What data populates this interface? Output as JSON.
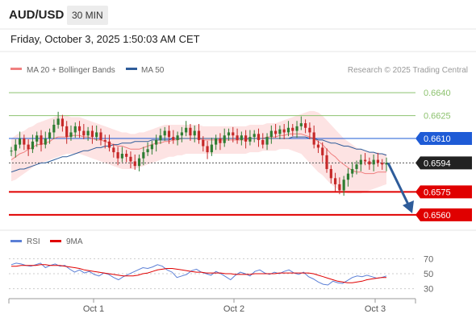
{
  "header": {
    "symbol": "AUD/USD",
    "timeframe": "30 MIN"
  },
  "datetime": "Friday, October 3, 2025 1:50:03 AM CET",
  "legend": {
    "bollinger_label": "MA 20 + Bollinger Bands",
    "ma50_label": "MA 50",
    "rsi_label": "RSI",
    "rsi_ma_label": "9MA"
  },
  "credit": "Research © 2025 Trading Central",
  "colors": {
    "bullish_candle": "#2e7d32",
    "bearish_candle": "#c62828",
    "bollinger_fill": "#fde0e0",
    "ma20": "#f08080",
    "ma50": "#2e5c9a",
    "support": "#e00000",
    "resistance": "#8dc26f",
    "pivot": "#1e5bd6",
    "arrow": "#2e5c9a",
    "rsi": "#5b7fd6",
    "rsi_ma": "#e00000"
  },
  "chart_data": [
    {
      "type": "candlestick",
      "x_labels": [
        "Oct 1",
        "Oct 2",
        "Oct 3"
      ],
      "ylim": [
        0.6552,
        0.6648
      ],
      "levels": [
        {
          "value": 0.664,
          "label": "0.6640",
          "kind": "resistance"
        },
        {
          "value": 0.6625,
          "label": "0.6625",
          "kind": "resistance"
        },
        {
          "value": 0.661,
          "label": "0.6610",
          "kind": "pivot"
        },
        {
          "value": 0.6594,
          "label": "0.6594",
          "kind": "last"
        },
        {
          "value": 0.6575,
          "label": "0.6575",
          "kind": "support"
        },
        {
          "value": 0.656,
          "label": "0.6560",
          "kind": "support"
        }
      ],
      "close": [
        0.6602,
        0.6606,
        0.661,
        0.6606,
        0.6603,
        0.6608,
        0.6612,
        0.6606,
        0.661,
        0.6614,
        0.6619,
        0.6623,
        0.6618,
        0.6611,
        0.6614,
        0.6618,
        0.6615,
        0.6612,
        0.6615,
        0.6611,
        0.6614,
        0.6609,
        0.6608,
        0.6604,
        0.6601,
        0.6597,
        0.66,
        0.6598,
        0.6595,
        0.6592,
        0.6597,
        0.6601,
        0.6603,
        0.6606,
        0.6609,
        0.6612,
        0.6615,
        0.6611,
        0.6609,
        0.6612,
        0.6614,
        0.6617,
        0.6612,
        0.6615,
        0.6609,
        0.6605,
        0.6601,
        0.6606,
        0.661,
        0.6607,
        0.6612,
        0.6614,
        0.6612,
        0.6609,
        0.6612,
        0.6608,
        0.6611,
        0.6613,
        0.6609,
        0.6606,
        0.6611,
        0.6615,
        0.6613,
        0.6616,
        0.6614,
        0.6617,
        0.6615,
        0.6618,
        0.662,
        0.6617,
        0.6614,
        0.6606,
        0.6604,
        0.6599,
        0.659,
        0.6584,
        0.658,
        0.6576,
        0.6583,
        0.6587,
        0.659,
        0.6593,
        0.6596,
        0.6595,
        0.6593,
        0.6596,
        0.6594,
        0.6593,
        0.6594
      ],
      "ma20": [
        0.6596,
        0.6598,
        0.66,
        0.6601,
        0.6603,
        0.6604,
        0.6606,
        0.6606,
        0.6607,
        0.6608,
        0.661,
        0.6611,
        0.6611,
        0.6611,
        0.6612,
        0.6612,
        0.6612,
        0.6611,
        0.6611,
        0.661,
        0.6609,
        0.6609,
        0.6608,
        0.6607,
        0.6606,
        0.6605,
        0.6605,
        0.6604,
        0.6603,
        0.6603,
        0.6603,
        0.6604,
        0.6605,
        0.6606,
        0.6607,
        0.6607,
        0.6608,
        0.6608,
        0.6609,
        0.6609,
        0.661,
        0.661,
        0.661,
        0.661,
        0.661,
        0.6609,
        0.6609,
        0.6609,
        0.6609,
        0.6609,
        0.6609,
        0.6609,
        0.6609,
        0.6609,
        0.6609,
        0.6609,
        0.661,
        0.661,
        0.661,
        0.661,
        0.6611,
        0.6611,
        0.6611,
        0.6612,
        0.6612,
        0.6613,
        0.6613,
        0.6613,
        0.6613,
        0.6612,
        0.6611,
        0.661,
        0.6608,
        0.6606,
        0.6603,
        0.66,
        0.6598,
        0.6595,
        0.6593,
        0.6591,
        0.6589,
        0.6588,
        0.6588,
        0.6587,
        0.6587,
        0.6587,
        0.6588,
        0.6588,
        0.6588
      ],
      "bb_upper": [
        0.661,
        0.6612,
        0.6614,
        0.6615,
        0.6617,
        0.6618,
        0.662,
        0.6621,
        0.6622,
        0.6623,
        0.6624,
        0.6625,
        0.6625,
        0.6625,
        0.6624,
        0.6624,
        0.6624,
        0.6623,
        0.6622,
        0.6621,
        0.662,
        0.6619,
        0.6618,
        0.6617,
        0.6616,
        0.6615,
        0.6614,
        0.6614,
        0.6613,
        0.6613,
        0.6614,
        0.6614,
        0.6615,
        0.6616,
        0.6617,
        0.6618,
        0.6619,
        0.6619,
        0.6619,
        0.6619,
        0.6619,
        0.6619,
        0.6619,
        0.6619,
        0.6619,
        0.6618,
        0.6618,
        0.6618,
        0.6618,
        0.6618,
        0.6618,
        0.6618,
        0.6618,
        0.6618,
        0.6618,
        0.6618,
        0.6619,
        0.6619,
        0.6619,
        0.6619,
        0.662,
        0.662,
        0.662,
        0.6621,
        0.6622,
        0.6623,
        0.6624,
        0.6625,
        0.6626,
        0.6627,
        0.6628,
        0.6628,
        0.6627,
        0.6625,
        0.6622,
        0.6619,
        0.6616,
        0.6613,
        0.661,
        0.6608,
        0.6606,
        0.6604,
        0.6603,
        0.6602,
        0.6601,
        0.6601,
        0.6601,
        0.66,
        0.66
      ],
      "bb_lower": [
        0.6582,
        0.6583,
        0.6585,
        0.6587,
        0.6589,
        0.6591,
        0.6593,
        0.6594,
        0.6595,
        0.6596,
        0.6597,
        0.6598,
        0.6599,
        0.66,
        0.66,
        0.66,
        0.66,
        0.6599,
        0.6598,
        0.6597,
        0.6596,
        0.6595,
        0.6594,
        0.6593,
        0.6592,
        0.6591,
        0.659,
        0.659,
        0.659,
        0.659,
        0.6591,
        0.6592,
        0.6593,
        0.6594,
        0.6595,
        0.6596,
        0.6597,
        0.6598,
        0.6598,
        0.6599,
        0.6599,
        0.66,
        0.66,
        0.66,
        0.66,
        0.66,
        0.66,
        0.66,
        0.66,
        0.66,
        0.66,
        0.66,
        0.66,
        0.66,
        0.66,
        0.66,
        0.6601,
        0.6601,
        0.6601,
        0.6602,
        0.6602,
        0.6602,
        0.6602,
        0.6603,
        0.6603,
        0.6603,
        0.6602,
        0.6601,
        0.66,
        0.6597,
        0.6594,
        0.6591,
        0.6588,
        0.6586,
        0.6583,
        0.658,
        0.6578,
        0.6576,
        0.6575,
        0.6574,
        0.6574,
        0.6574,
        0.6574,
        0.6575,
        0.6576,
        0.6577,
        0.6578,
        0.6579,
        0.658
      ],
      "ma50": [
        0.6588,
        0.6589,
        0.659,
        0.659,
        0.6591,
        0.6592,
        0.6593,
        0.6594,
        0.6594,
        0.6595,
        0.6596,
        0.6597,
        0.6598,
        0.6598,
        0.6599,
        0.66,
        0.6601,
        0.6602,
        0.6602,
        0.6603,
        0.6604,
        0.6604,
        0.6605,
        0.6605,
        0.6606,
        0.6606,
        0.6607,
        0.6607,
        0.6607,
        0.6608,
        0.6608,
        0.6608,
        0.6608,
        0.6609,
        0.6609,
        0.6609,
        0.6609,
        0.6609,
        0.661,
        0.661,
        0.661,
        0.661,
        0.661,
        0.661,
        0.661,
        0.661,
        0.661,
        0.661,
        0.661,
        0.661,
        0.661,
        0.661,
        0.661,
        0.661,
        0.661,
        0.661,
        0.661,
        0.661,
        0.661,
        0.661,
        0.661,
        0.661,
        0.661,
        0.661,
        0.661,
        0.661,
        0.6611,
        0.6611,
        0.6611,
        0.6611,
        0.661,
        0.661,
        0.6609,
        0.6609,
        0.6608,
        0.6607,
        0.6607,
        0.6606,
        0.6605,
        0.6605,
        0.6604,
        0.6603,
        0.6603,
        0.6602,
        0.6601,
        0.6601,
        0.66,
        0.66,
        0.6599
      ]
    },
    {
      "type": "line",
      "ylim": [
        20,
        80
      ],
      "y_ticks": [
        "70",
        "50",
        "30"
      ],
      "series": [
        {
          "name": "RSI",
          "values": [
            62,
            64,
            63,
            61,
            60,
            62,
            64,
            58,
            61,
            63,
            60,
            61,
            56,
            52,
            55,
            51,
            53,
            49,
            47,
            51,
            49,
            45,
            42,
            46,
            49,
            52,
            55,
            58,
            57,
            59,
            62,
            60,
            55,
            52,
            45,
            47,
            49,
            54,
            56,
            52,
            50,
            48,
            53,
            50,
            46,
            42,
            48,
            52,
            50,
            47,
            53,
            55,
            51,
            49,
            52,
            50,
            53,
            55,
            51,
            49,
            52,
            46,
            43,
            39,
            36,
            35,
            40,
            38,
            37,
            41,
            45,
            47,
            46,
            48,
            46,
            44,
            45,
            47
          ]
        },
        {
          "name": "9MA",
          "values": [
            60,
            60,
            61,
            61,
            61,
            61,
            62,
            62,
            61,
            61,
            61,
            60,
            59,
            58,
            57,
            55,
            54,
            53,
            52,
            51,
            50,
            49,
            48,
            47,
            47,
            47,
            48,
            50,
            51,
            53,
            55,
            56,
            57,
            57,
            56,
            55,
            54,
            53,
            52,
            52,
            51,
            51,
            51,
            51,
            50,
            50,
            49,
            49,
            49,
            49,
            50,
            50,
            50,
            50,
            50,
            51,
            51,
            51,
            51,
            51,
            51,
            51,
            50,
            48,
            46,
            44,
            42,
            40,
            39,
            38,
            38,
            39,
            40,
            42,
            43,
            44,
            45,
            45
          ]
        }
      ]
    }
  ]
}
